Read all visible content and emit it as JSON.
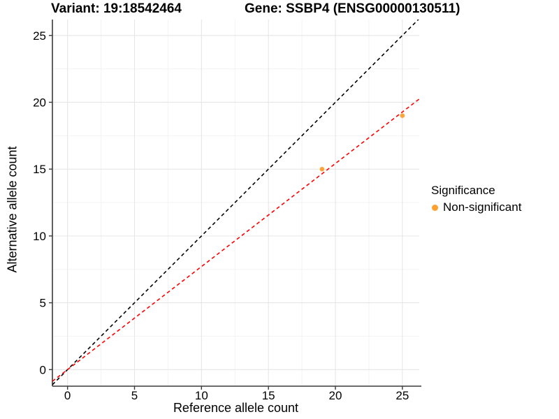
{
  "header": {
    "variant_title": "Variant: 19:18542464",
    "gene_title": "Gene: SSBP4 (ENSG00000130511)"
  },
  "chart_data": {
    "type": "scatter",
    "xlabel": "Reference allele count",
    "ylabel": "Alternative allele count",
    "xlim": [
      -1.13,
      26.26
    ],
    "ylim": [
      -1.24,
      26.19
    ],
    "xticks": [
      0,
      5,
      10,
      15,
      20,
      25
    ],
    "yticks": [
      0,
      5,
      10,
      15,
      20,
      25
    ],
    "xticks_minor": [
      2.5,
      7.5,
      12.5,
      17.5,
      22.5
    ],
    "yticks_minor": [
      2.5,
      7.5,
      12.5,
      17.5,
      22.5
    ],
    "grid": true,
    "series": [
      {
        "name": "Non-significant",
        "color": "#FFA02E",
        "points": [
          {
            "x": 19,
            "y": 15
          },
          {
            "x": 25,
            "y": 19
          }
        ]
      }
    ],
    "lines": [
      {
        "name": "identity-line",
        "slope": 1,
        "intercept": 0,
        "color": "#000000",
        "style": "dashed"
      },
      {
        "name": "fit-line",
        "slope": 0.771,
        "intercept": 0,
        "color": "#FF0000",
        "style": "dashed"
      }
    ],
    "legend": {
      "title": "Significance",
      "position": "right",
      "items": [
        {
          "label": "Non-significant",
          "color": "#FFA02E"
        }
      ]
    }
  },
  "colors": {
    "background": "#FFFFFF",
    "grid_major": "#E6E6E6",
    "grid_minor": "#F3F3F3",
    "axis_line": "#3A3A3A",
    "tick_text": "#000000",
    "point": "#FFA02E",
    "fit_line": "#FF0000",
    "identity_line": "#000000"
  }
}
